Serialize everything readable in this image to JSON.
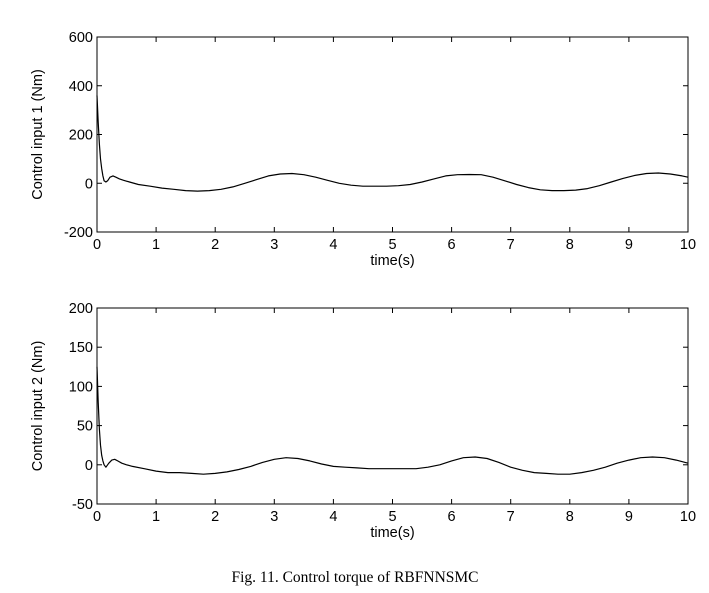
{
  "caption": "Fig. 11.  Control torque of RBFNNSMC",
  "chart_data": [
    {
      "type": "line",
      "title": "",
      "xlabel": "time(s)",
      "ylabel": "Control input 1 (Nm)",
      "xlim": [
        0,
        10
      ],
      "ylim": [
        -200,
        600
      ],
      "xticks": [
        0,
        1,
        2,
        3,
        4,
        5,
        6,
        7,
        8,
        9,
        10
      ],
      "yticks": [
        -200,
        0,
        200,
        400,
        600
      ],
      "grid": false,
      "series": [
        {
          "name": "Control input 1",
          "color": "#000000",
          "x": [
            0,
            0.02,
            0.04,
            0.06,
            0.08,
            0.1,
            0.12,
            0.15,
            0.18,
            0.22,
            0.27,
            0.32,
            0.38,
            0.45,
            0.55,
            0.7,
            0.9,
            1.1,
            1.3,
            1.5,
            1.7,
            1.9,
            2.1,
            2.3,
            2.5,
            2.7,
            2.9,
            3.1,
            3.3,
            3.5,
            3.7,
            3.9,
            4.1,
            4.3,
            4.5,
            4.7,
            4.9,
            5.1,
            5.3,
            5.5,
            5.7,
            5.9,
            6.1,
            6.3,
            6.5,
            6.7,
            6.9,
            7.1,
            7.3,
            7.5,
            7.7,
            7.9,
            8.1,
            8.3,
            8.5,
            8.7,
            8.9,
            9.1,
            9.3,
            9.5,
            9.7,
            9.9,
            10
          ],
          "y": [
            360,
            250,
            160,
            100,
            60,
            30,
            10,
            5,
            10,
            25,
            30,
            25,
            18,
            12,
            5,
            -5,
            -12,
            -20,
            -25,
            -30,
            -32,
            -30,
            -25,
            -15,
            0,
            15,
            30,
            38,
            40,
            35,
            25,
            12,
            0,
            -8,
            -12,
            -12,
            -12,
            -10,
            -5,
            5,
            18,
            30,
            35,
            36,
            35,
            25,
            10,
            -5,
            -18,
            -27,
            -30,
            -30,
            -28,
            -22,
            -10,
            5,
            20,
            32,
            40,
            42,
            38,
            30,
            25
          ]
        }
      ]
    },
    {
      "type": "line",
      "title": "",
      "xlabel": "time(s)",
      "ylabel": "Control input 2 (Nm)",
      "xlim": [
        0,
        10
      ],
      "ylim": [
        -50,
        200
      ],
      "xticks": [
        0,
        1,
        2,
        3,
        4,
        5,
        6,
        7,
        8,
        9,
        10
      ],
      "yticks": [
        -50,
        0,
        50,
        100,
        150,
        200
      ],
      "grid": false,
      "series": [
        {
          "name": "Control input 2",
          "color": "#000000",
          "x": [
            0,
            0.02,
            0.04,
            0.06,
            0.08,
            0.1,
            0.12,
            0.15,
            0.2,
            0.25,
            0.3,
            0.35,
            0.42,
            0.5,
            0.6,
            0.8,
            1.0,
            1.2,
            1.4,
            1.6,
            1.8,
            2.0,
            2.2,
            2.4,
            2.6,
            2.8,
            3.0,
            3.2,
            3.4,
            3.6,
            3.8,
            4.0,
            4.2,
            4.4,
            4.6,
            4.8,
            5.0,
            5.2,
            5.4,
            5.6,
            5.8,
            6.0,
            6.2,
            6.4,
            6.6,
            6.8,
            7.0,
            7.2,
            7.4,
            7.6,
            7.8,
            8.0,
            8.2,
            8.4,
            8.6,
            8.8,
            9.0,
            9.2,
            9.4,
            9.6,
            9.8,
            10
          ],
          "y": [
            125,
            80,
            45,
            25,
            12,
            5,
            0,
            -3,
            2,
            6,
            7,
            5,
            2,
            0,
            -2,
            -5,
            -8,
            -10,
            -10,
            -11,
            -12,
            -11,
            -9,
            -6,
            -2,
            3,
            7,
            9,
            8,
            5,
            1,
            -2,
            -3,
            -4,
            -5,
            -5,
            -5,
            -5,
            -5,
            -3,
            0,
            5,
            9,
            10,
            8,
            3,
            -3,
            -7,
            -10,
            -11,
            -12,
            -12,
            -10,
            -7,
            -3,
            2,
            6,
            9,
            10,
            9,
            6,
            2
          ]
        }
      ]
    }
  ]
}
